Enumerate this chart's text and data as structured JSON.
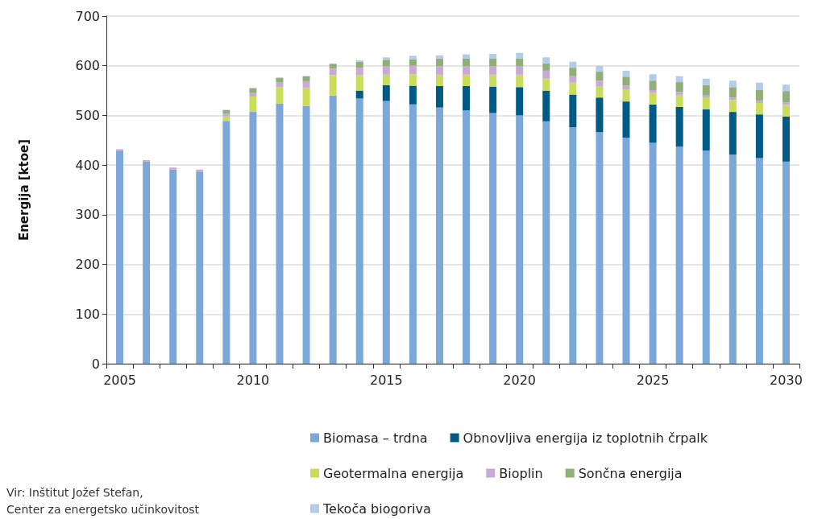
{
  "chart_data": {
    "type": "bar",
    "stacked": true,
    "ylabel": "Energija [ktoe]",
    "categories": [
      "2005",
      null,
      null,
      null,
      null,
      "2010",
      null,
      null,
      null,
      null,
      "2015",
      null,
      null,
      null,
      null,
      "2020",
      null,
      null,
      null,
      null,
      "2025",
      null,
      null,
      null,
      null,
      "2030"
    ],
    "series": [
      {
        "name": "Biomasa – trdna",
        "color": "#7ba7d9",
        "values": [
          429,
          407,
          391,
          387,
          489,
          508,
          524,
          519,
          540,
          534,
          529,
          522,
          516,
          510,
          505,
          500,
          488,
          476,
          466,
          455,
          445,
          437,
          429,
          421,
          414,
          407
        ]
      },
      {
        "name": "Obnovljiva energija iz toplotnih črpalk",
        "color": "#005a87",
        "values": [
          0,
          0,
          0,
          0,
          0,
          0,
          0,
          0,
          0,
          16,
          32,
          38,
          43,
          49,
          53,
          57,
          62,
          66,
          70,
          73,
          77,
          80,
          83,
          86,
          88,
          91
        ]
      },
      {
        "name": "Geotermalna energija",
        "color": "#c9dd5a",
        "values": [
          0,
          0,
          0,
          0,
          9,
          30,
          33,
          37,
          41,
          31,
          21,
          23,
          23,
          23,
          24,
          25,
          24,
          24,
          23,
          24,
          24,
          23,
          23,
          24,
          23,
          23
        ]
      },
      {
        "name": "Bioplin",
        "color": "#c9a9d6",
        "values": [
          3,
          3,
          4,
          4,
          5,
          8,
          9,
          13,
          13,
          15,
          17,
          17,
          17,
          17,
          17,
          17,
          16,
          13,
          11,
          8,
          5,
          7,
          5,
          5,
          5,
          5
        ]
      },
      {
        "name": "Sončna energija",
        "color": "#8fae78",
        "values": [
          0,
          0,
          0,
          0,
          8,
          9,
          10,
          10,
          10,
          12,
          13,
          13,
          15,
          16,
          16,
          16,
          15,
          17,
          18,
          18,
          19,
          20,
          21,
          21,
          21,
          23
        ]
      },
      {
        "name": "Tekoča biogoriva",
        "color": "#b3cde9",
        "values": [
          null,
          null,
          null,
          null,
          null,
          null,
          null,
          null,
          null,
          3,
          5,
          7,
          7,
          8,
          9,
          11,
          12,
          12,
          12,
          12,
          13,
          12,
          13,
          13,
          15,
          13
        ]
      }
    ],
    "ylim": [
      0,
      700
    ],
    "yticks": [
      0,
      100,
      200,
      300,
      400,
      500,
      600,
      700
    ],
    "grid": "y",
    "legend": "bottom",
    "annotations": [
      "Vir: Inštitut Jožef Stefan,\nCenter za energetsko učinkovitost"
    ]
  }
}
